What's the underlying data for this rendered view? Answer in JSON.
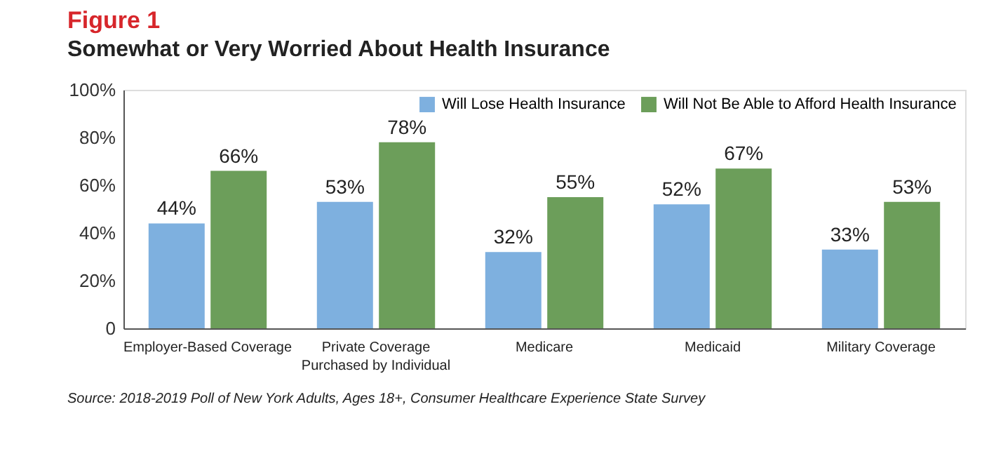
{
  "chart_data": {
    "type": "bar",
    "title": "Figure 1",
    "subtitle": "Somewhat or Very Worried About Health Insurance",
    "categories": [
      "Employer-Based Coverage",
      "Private Coverage Purchased by Individual",
      "Medicare",
      "Medicaid",
      "Military Coverage"
    ],
    "series": [
      {
        "name": "Will Lose Health Insurance",
        "color": "#7eb0df",
        "values": [
          44,
          53,
          32,
          52,
          33
        ],
        "value_labels": [
          "44%",
          "53%",
          "32%",
          "52%",
          "33%"
        ]
      },
      {
        "name": "Will Not Be Able to Afford Health Insurance",
        "color": "#6c9e5a",
        "values": [
          66,
          78,
          55,
          67,
          53
        ],
        "value_labels": [
          "66%",
          "78%",
          "55%",
          "67%",
          "53%"
        ]
      }
    ],
    "ylim": [
      0,
      100
    ],
    "yticks": [
      0,
      {
        "value": 20,
        "label": "20%"
      },
      {
        "value": 40,
        "label": "40%"
      },
      {
        "value": 60,
        "label": "60%"
      },
      {
        "value": 80,
        "label": "80%"
      },
      {
        "value": 100,
        "label": "100%"
      }
    ],
    "grid": false,
    "legend": "top right",
    "annotations": [
      "Source: 2018-2019 Poll of New York Adults, Ages 18+, Consumer Healthcare Experience State Survey"
    ]
  }
}
